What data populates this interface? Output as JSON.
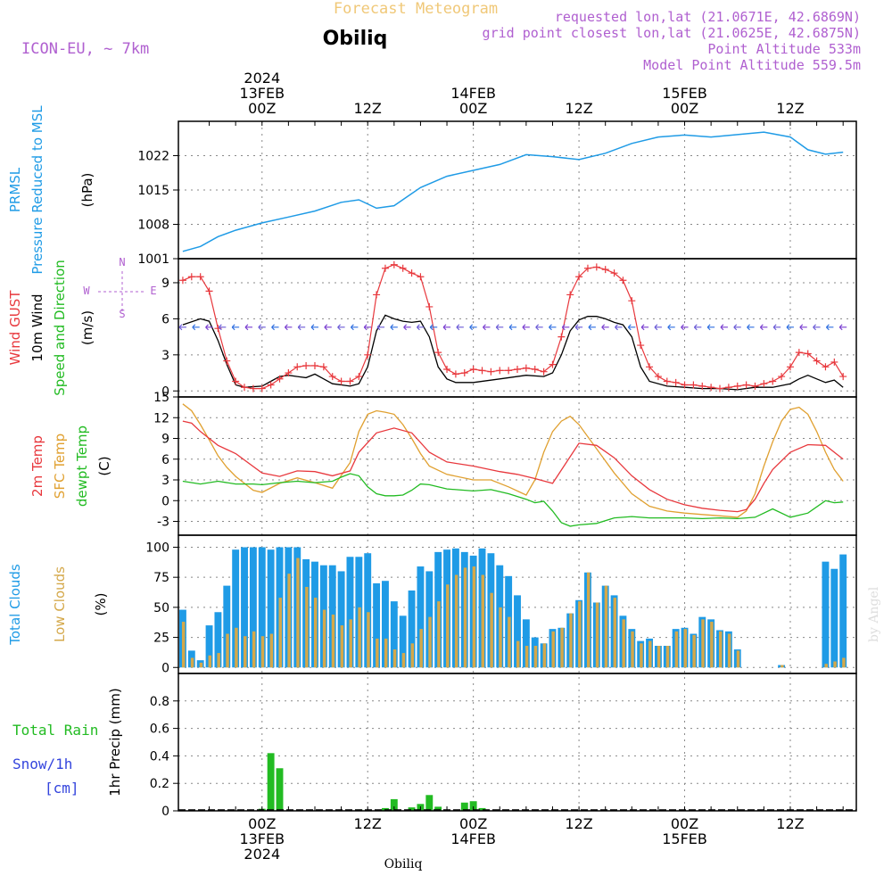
{
  "header": {
    "faded_title": "Forecast Meteogram",
    "model": "ICON-EU, ~ 7km",
    "location": "Obiliq",
    "requested": "requested lon,lat (21.0671E, 42.6869N)",
    "grid_point": "grid point closest lon,lat (21.0625E, 42.6875N)",
    "point_alt": "Point Altitude 533m",
    "model_alt": "Model Point Altitude 559.5m",
    "credit": "by Angel",
    "footer_location": "Obiliq"
  },
  "time_axis": {
    "top": [
      {
        "lines": [
          "2024",
          "13FEB",
          "00Z"
        ],
        "h": 0
      },
      {
        "lines": [
          "12Z"
        ],
        "h": 12
      },
      {
        "lines": [
          "14FEB",
          "00Z"
        ],
        "h": 24
      },
      {
        "lines": [
          "12Z"
        ],
        "h": 36
      },
      {
        "lines": [
          "15FEB",
          "00Z"
        ],
        "h": 48
      },
      {
        "lines": [
          "12Z"
        ],
        "h": 60
      }
    ],
    "bottom": [
      {
        "lines": [
          "00Z",
          "13FEB",
          "2024"
        ],
        "h": 0
      },
      {
        "lines": [
          "12Z"
        ],
        "h": 12
      },
      {
        "lines": [
          "00Z",
          "14FEB"
        ],
        "h": 24
      },
      {
        "lines": [
          "12Z"
        ],
        "h": 36
      },
      {
        "lines": [
          "00Z",
          "15FEB"
        ],
        "h": 48
      },
      {
        "lines": [
          "12Z"
        ],
        "h": 60
      }
    ]
  },
  "panels": {
    "pressure": {
      "labels": [
        {
          "text": "PRMSL",
          "color": "#1f9be6"
        },
        {
          "text": "Pressure Reduced to MSL",
          "color": "#1f9be6"
        },
        {
          "text": "(hPa)",
          "color": "#000000"
        }
      ]
    },
    "wind": {
      "labels": [
        {
          "text": "Wind GUST",
          "color": "#e8383d"
        },
        {
          "text": "10m Wind",
          "color": "#000000"
        },
        {
          "text": "Speed and Direction",
          "color": "#22bb22"
        },
        {
          "text": "(m/s)",
          "color": "#000000"
        }
      ],
      "compass": {
        "n": "N",
        "s": "S",
        "w": "W",
        "e": "E"
      }
    },
    "temp": {
      "labels": [
        {
          "text": "2m Temp",
          "color": "#e8383d"
        },
        {
          "text": "SFC Temp",
          "color": "#e0a030"
        },
        {
          "text": "dewpt Temp",
          "color": "#22bb22"
        },
        {
          "text": "(C)",
          "color": "#000000"
        }
      ]
    },
    "clouds": {
      "labels": [
        {
          "text": "Total Clouds",
          "color": "#1f9be6"
        },
        {
          "text": "Low Clouds",
          "color": "#d4a84a"
        },
        {
          "text": "(%)",
          "color": "#000000"
        }
      ]
    },
    "precip": {
      "labels": [
        {
          "text": "1hr Precip (mm)",
          "color": "#000000"
        }
      ],
      "legend": [
        {
          "text": "Total  Rain",
          "color": "#22bb22"
        },
        {
          "text": "Snow/1h",
          "color": "#3344dd"
        },
        {
          "text": "[cm]",
          "color": "#3344dd"
        }
      ]
    }
  },
  "colors": {
    "pressure": "#1f9be6",
    "gust": "#e8383d",
    "wind": "#000000",
    "t2m": "#e8383d",
    "tsfc": "#e0a030",
    "dewpt": "#22bb22",
    "total_clouds": "#1f9be6",
    "low_clouds": "#d4a84a",
    "rain": "#22bb22",
    "header_purple": "#b060d0",
    "faded": "#f0c878"
  },
  "chart_data": [
    {
      "type": "line",
      "panel": "pressure",
      "x_unit": "hours from 13FEB 00Z",
      "xlim": [
        -9.5,
        67.5
      ],
      "ylim": [
        1001,
        1029
      ],
      "yticks": [
        1001,
        1008,
        1015,
        1022
      ],
      "series": [
        {
          "name": "PRMSL",
          "x": [
            -9,
            -7,
            -5,
            -3,
            0,
            3,
            6,
            9,
            11,
            13,
            15,
            18,
            21,
            24,
            27,
            30,
            33,
            36,
            39,
            42,
            45,
            48,
            51,
            54,
            57,
            60,
            62,
            64,
            66
          ],
          "values": [
            1002.5,
            1003.5,
            1005.5,
            1006.8,
            1008.3,
            1009.5,
            1010.7,
            1012.5,
            1013.0,
            1011.3,
            1011.8,
            1015.5,
            1017.8,
            1019.0,
            1020.2,
            1022.2,
            1021.8,
            1021.2,
            1022.5,
            1024.5,
            1025.8,
            1026.2,
            1025.8,
            1026.3,
            1026.8,
            1025.8,
            1023.2,
            1022.3,
            1022.7
          ]
        }
      ]
    },
    {
      "type": "line",
      "panel": "wind",
      "ylim": [
        -0.5,
        11
      ],
      "yticks": [
        0,
        3,
        6,
        9
      ],
      "series": [
        {
          "name": "Wind GUST",
          "x": [
            -9,
            -8,
            -7,
            -6,
            -5,
            -4,
            -3,
            -2,
            -1,
            0,
            1,
            2,
            3,
            4,
            5,
            6,
            7,
            8,
            9,
            10,
            11,
            12,
            13,
            14,
            15,
            16,
            17,
            18,
            19,
            20,
            21,
            22,
            23,
            24,
            25,
            26,
            27,
            28,
            29,
            30,
            31,
            32,
            33,
            34,
            35,
            36,
            37,
            38,
            39,
            40,
            41,
            42,
            43,
            44,
            45,
            46,
            47,
            48,
            49,
            50,
            51,
            52,
            53,
            54,
            55,
            56,
            57,
            58,
            59,
            60,
            61,
            62,
            63,
            64,
            65,
            66
          ],
          "values": [
            9.2,
            9.5,
            9.5,
            8.3,
            5.2,
            2.5,
            0.8,
            0.3,
            0.2,
            0.2,
            0.5,
            1.0,
            1.5,
            2.0,
            2.1,
            2.1,
            2.0,
            1.2,
            0.8,
            0.8,
            1.2,
            3.0,
            8.0,
            10.2,
            10.5,
            10.2,
            9.8,
            9.5,
            7.0,
            3.2,
            1.8,
            1.4,
            1.5,
            1.8,
            1.7,
            1.6,
            1.7,
            1.7,
            1.8,
            1.9,
            1.8,
            1.6,
            2.2,
            4.5,
            8.0,
            9.5,
            10.2,
            10.3,
            10.1,
            9.8,
            9.2,
            7.5,
            3.8,
            2.0,
            1.2,
            0.8,
            0.7,
            0.5,
            0.5,
            0.4,
            0.3,
            0.2,
            0.3,
            0.4,
            0.5,
            0.4,
            0.6,
            0.8,
            1.2,
            2.0,
            3.2,
            3.1,
            2.5,
            2.0,
            2.4,
            1.2
          ]
        },
        {
          "name": "10m Wind",
          "x": [
            -9,
            -7,
            -6,
            -5,
            -4,
            -3,
            -2,
            0,
            1,
            2,
            3,
            4,
            5,
            6,
            7,
            8,
            9,
            10,
            11,
            12,
            13,
            14,
            15,
            16,
            17,
            18,
            19,
            20,
            21,
            22,
            24,
            27,
            30,
            32,
            33,
            34,
            35,
            36,
            37,
            38,
            39,
            40,
            41,
            42,
            43,
            44,
            46,
            48,
            50,
            52,
            54,
            56,
            58,
            60,
            61,
            62,
            63,
            64,
            65,
            66
          ],
          "values": [
            5.5,
            6.0,
            5.8,
            4.2,
            2.2,
            0.5,
            0.3,
            0.4,
            0.8,
            1.2,
            1.3,
            1.2,
            1.1,
            1.4,
            1.0,
            0.6,
            0.5,
            0.4,
            0.6,
            2.0,
            5.0,
            6.3,
            6.0,
            5.8,
            5.7,
            5.8,
            4.5,
            2.0,
            1.0,
            0.7,
            0.7,
            1.0,
            1.3,
            1.2,
            1.5,
            3.0,
            5.0,
            5.9,
            6.2,
            6.2,
            6.0,
            5.7,
            5.5,
            4.5,
            2.0,
            0.8,
            0.4,
            0.3,
            0.2,
            0.2,
            0.1,
            0.3,
            0.3,
            0.6,
            1.0,
            1.3,
            1.0,
            0.7,
            0.9,
            0.3
          ]
        }
      ]
    },
    {
      "type": "line",
      "panel": "temp",
      "ylim": [
        -5,
        15
      ],
      "yticks": [
        -3,
        0,
        3,
        6,
        9,
        12,
        15
      ],
      "series": [
        {
          "name": "2m Temp",
          "x": [
            -9,
            -8,
            -7,
            -5,
            -3,
            0,
            2,
            4,
            6,
            8,
            10,
            11,
            13,
            15,
            17,
            19,
            21,
            24,
            27,
            29,
            31,
            33,
            36,
            38,
            40,
            42,
            44,
            46,
            48,
            50,
            52,
            54,
            55,
            56,
            57,
            58,
            60,
            62,
            64,
            66
          ],
          "values": [
            11.5,
            11.2,
            10.0,
            8.0,
            6.8,
            4.0,
            3.5,
            4.3,
            4.2,
            3.6,
            4.3,
            7.0,
            9.8,
            10.5,
            9.8,
            7.0,
            5.6,
            5.0,
            4.2,
            3.8,
            3.2,
            2.5,
            8.3,
            8.0,
            6.2,
            3.6,
            1.6,
            0.2,
            -0.6,
            -1.1,
            -1.4,
            -1.6,
            -1.3,
            0.2,
            2.5,
            4.5,
            7.0,
            8.1,
            8.0,
            6.0
          ]
        },
        {
          "name": "SFC Temp",
          "x": [
            -9,
            -8,
            -7,
            -6,
            -5,
            -4,
            -3,
            -1,
            0,
            2,
            4,
            6,
            8,
            10,
            11,
            12,
            13,
            14,
            15,
            16,
            17,
            18,
            19,
            21,
            24,
            26,
            28,
            30,
            31,
            32,
            33,
            34,
            35,
            36,
            38,
            40,
            42,
            44,
            46,
            48,
            50,
            52,
            54,
            55,
            56,
            57,
            58,
            59,
            60,
            61,
            62,
            63,
            64,
            65,
            66
          ],
          "values": [
            14.0,
            13.0,
            11.0,
            8.8,
            6.5,
            4.8,
            3.5,
            1.5,
            1.2,
            2.5,
            3.3,
            2.6,
            1.8,
            5.5,
            10.0,
            12.5,
            13.0,
            12.8,
            12.5,
            11.0,
            9.0,
            6.8,
            5.0,
            3.8,
            3.0,
            3.0,
            2.0,
            0.8,
            3.0,
            7.0,
            10.0,
            11.5,
            12.2,
            11.0,
            7.5,
            4.0,
            1.0,
            -0.8,
            -1.5,
            -1.8,
            -2.0,
            -2.2,
            -2.4,
            -1.5,
            1.0,
            5.0,
            8.5,
            11.5,
            13.2,
            13.5,
            12.5,
            10.0,
            7.0,
            4.5,
            2.8
          ]
        },
        {
          "name": "dewpt Temp",
          "x": [
            -9,
            -7,
            -5,
            -3,
            -1,
            0,
            2,
            4,
            6,
            8,
            9,
            10,
            11,
            12,
            13,
            14,
            15,
            16,
            17,
            18,
            19,
            21,
            24,
            26,
            28,
            30,
            31,
            32,
            33,
            34,
            35,
            36,
            38,
            40,
            42,
            44,
            46,
            48,
            50,
            52,
            54,
            56,
            58,
            60,
            62,
            64,
            65,
            66
          ],
          "values": [
            2.8,
            2.4,
            2.8,
            2.4,
            2.4,
            2.3,
            2.6,
            2.8,
            2.6,
            2.8,
            3.4,
            3.9,
            3.6,
            2.0,
            1.0,
            0.7,
            0.7,
            0.8,
            1.5,
            2.4,
            2.3,
            1.7,
            1.4,
            1.6,
            1.0,
            0.2,
            -0.3,
            -0.1,
            -1.5,
            -3.2,
            -3.7,
            -3.5,
            -3.3,
            -2.5,
            -2.3,
            -2.5,
            -2.5,
            -2.5,
            -2.6,
            -2.5,
            -2.6,
            -2.4,
            -1.2,
            -2.4,
            -1.8,
            0.0,
            -0.3,
            -0.2
          ]
        }
      ]
    },
    {
      "type": "bar",
      "panel": "clouds",
      "ylim": [
        -5,
        110
      ],
      "yticks": [
        0,
        25,
        50,
        75,
        100
      ],
      "x_start": -9,
      "x_step": 1,
      "series": [
        {
          "name": "Total Clouds",
          "values": [
            48,
            14,
            6,
            35,
            46,
            68,
            98,
            100,
            100,
            100,
            98,
            100,
            100,
            100,
            90,
            88,
            85,
            85,
            80,
            92,
            92,
            95,
            70,
            72,
            55,
            43,
            64,
            84,
            80,
            96,
            98,
            99,
            96,
            93,
            99,
            95,
            85,
            76,
            60,
            40,
            25,
            20,
            32,
            33,
            45,
            56,
            79,
            54,
            68,
            60,
            43,
            32,
            22,
            24,
            18,
            18,
            32,
            33,
            28,
            42,
            40,
            31,
            30,
            15,
            0,
            0,
            0,
            0,
            2,
            0,
            0,
            0,
            0,
            88,
            82,
            94
          ]
        },
        {
          "name": "Low Clouds",
          "values": [
            38,
            8,
            4,
            10,
            12,
            28,
            33,
            26,
            30,
            26,
            28,
            58,
            78,
            91,
            67,
            58,
            48,
            44,
            35,
            40,
            50,
            46,
            24,
            24,
            15,
            12,
            20,
            32,
            42,
            55,
            69,
            77,
            83,
            84,
            77,
            62,
            50,
            42,
            22,
            18,
            18,
            20,
            30,
            33,
            45,
            55,
            79,
            54,
            68,
            58,
            40,
            30,
            20,
            22,
            18,
            18,
            30,
            32,
            27,
            40,
            38,
            30,
            28,
            14,
            0,
            0,
            0,
            0,
            2,
            0,
            0,
            0,
            0,
            3,
            5,
            8
          ]
        }
      ]
    },
    {
      "type": "bar",
      "panel": "precip",
      "ylim": [
        0,
        1.0
      ],
      "yticks": [
        0,
        0.2,
        0.4,
        0.6,
        0.8
      ],
      "series": [
        {
          "name": "Total Rain",
          "x": [
            0,
            1,
            2,
            11,
            14,
            15,
            17,
            18,
            19,
            20,
            23,
            24,
            25
          ],
          "values": [
            0.015,
            0.42,
            0.31,
            0.01,
            0.02,
            0.085,
            0.025,
            0.05,
            0.115,
            0.03,
            0.06,
            0.07,
            0.02
          ]
        }
      ]
    }
  ]
}
